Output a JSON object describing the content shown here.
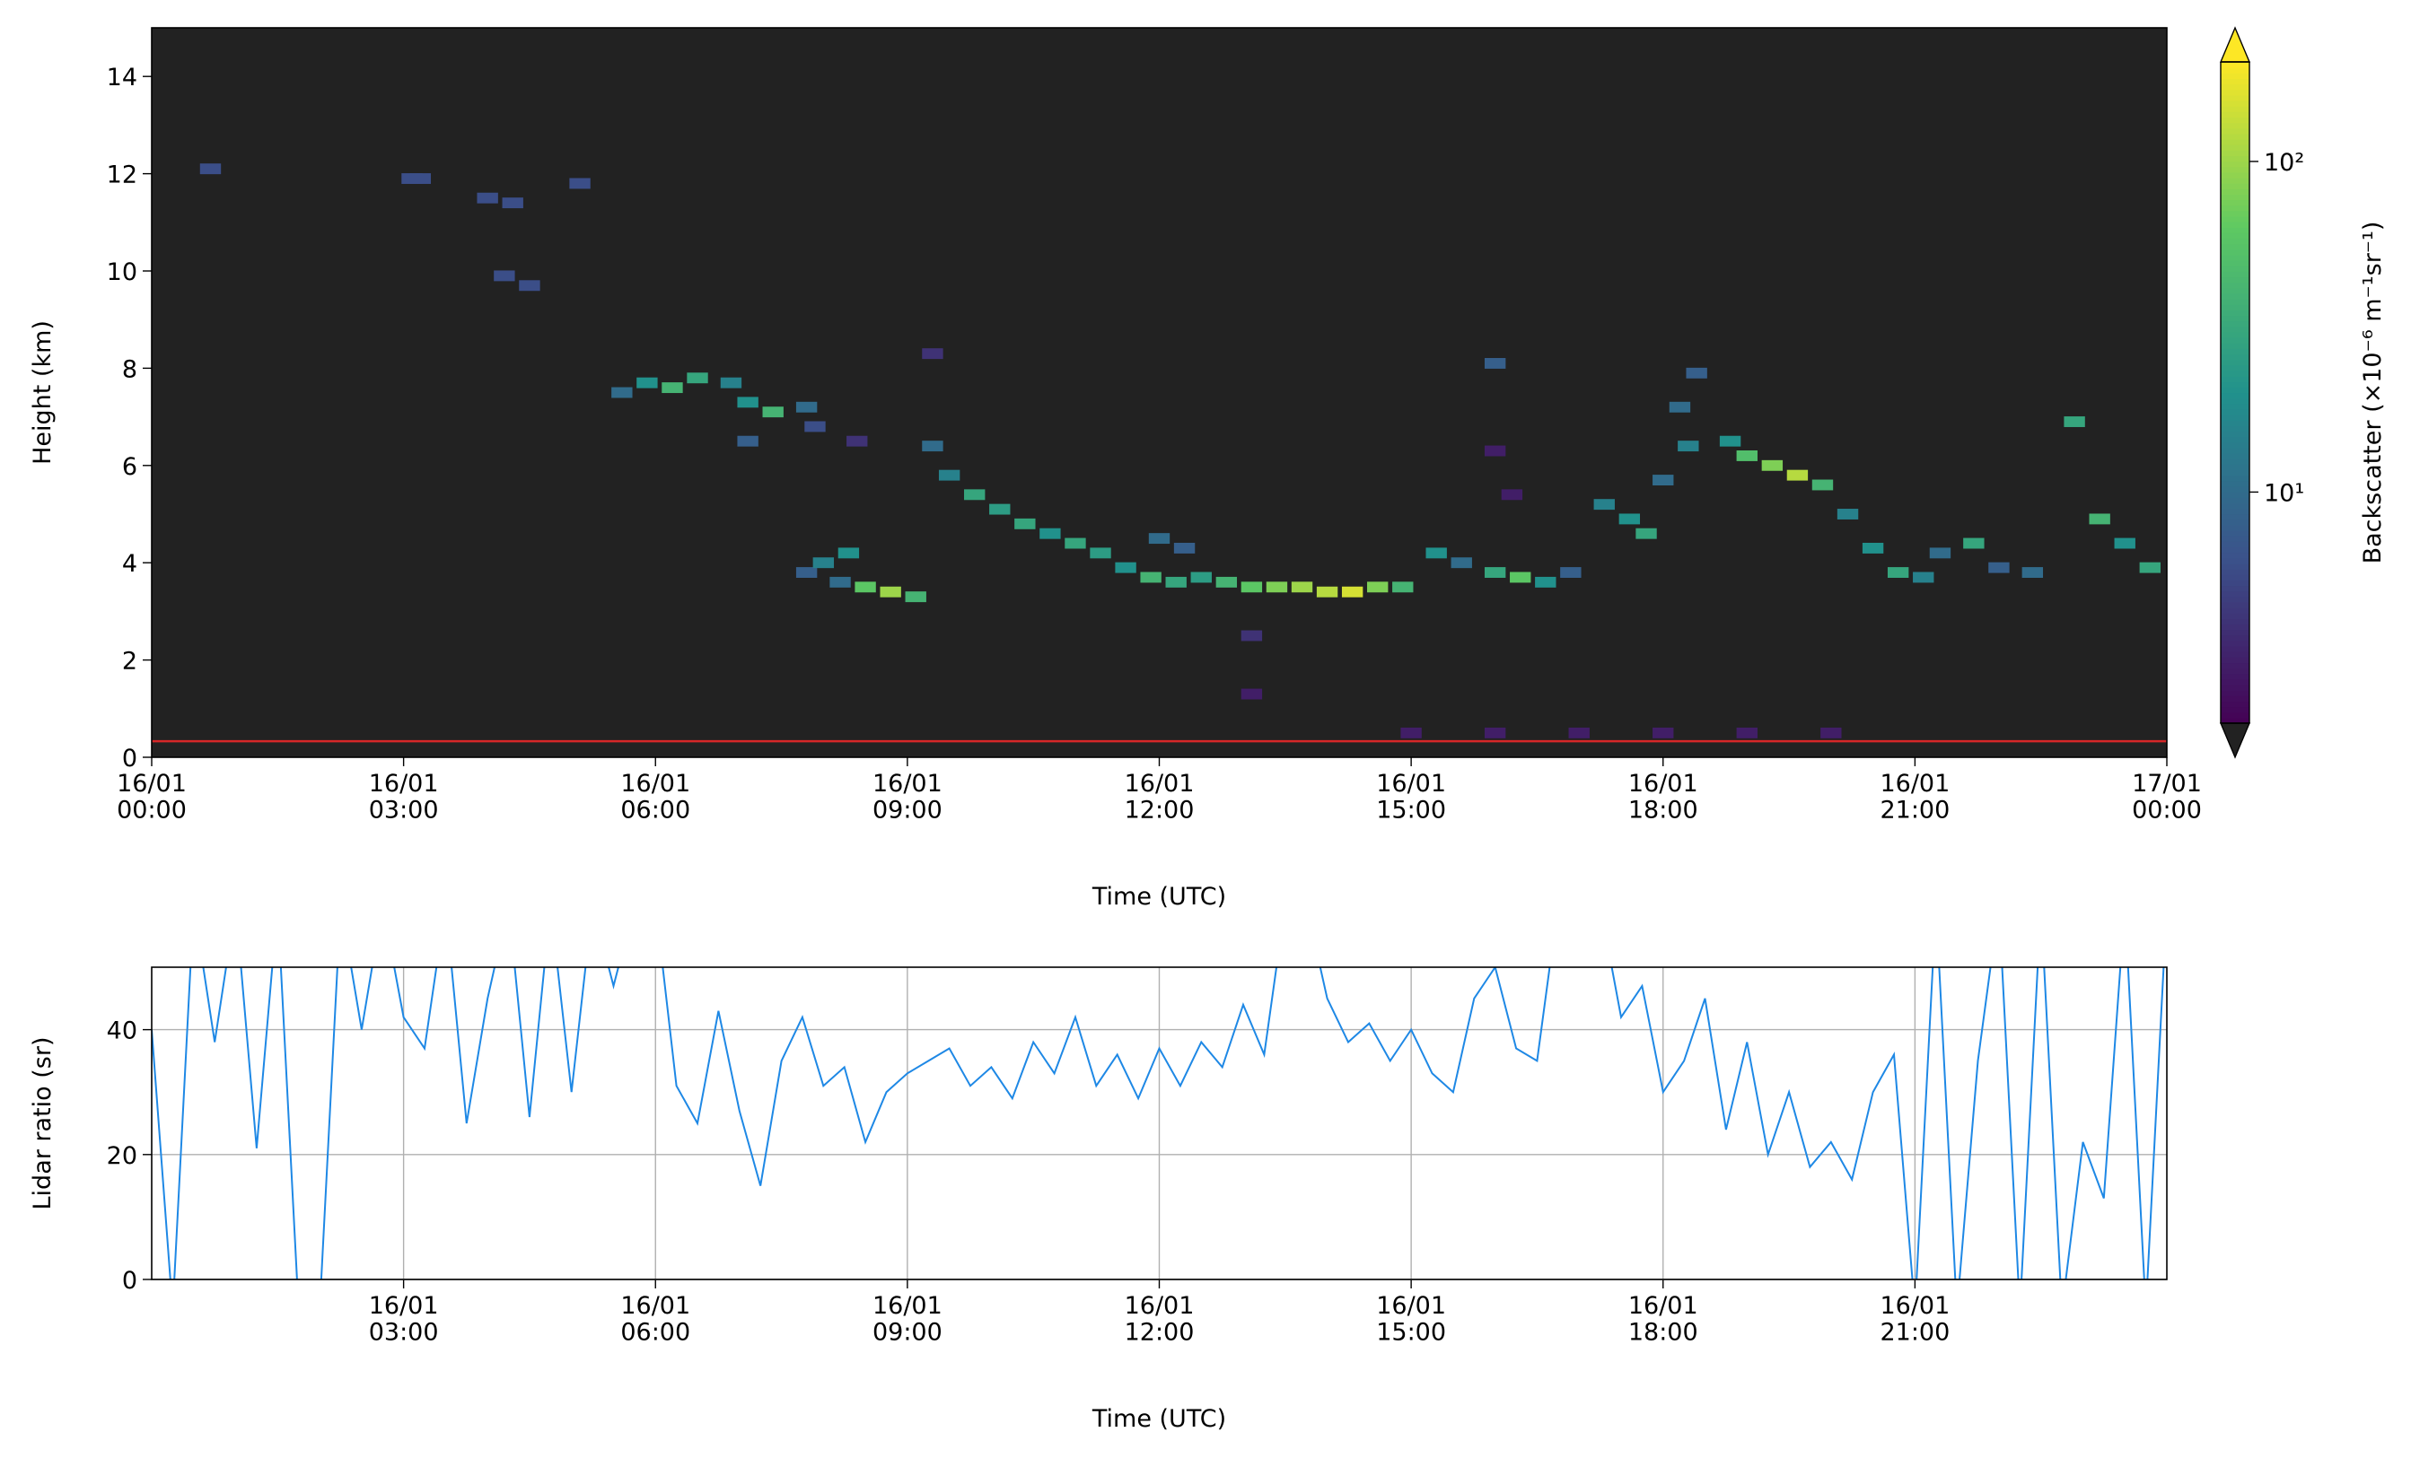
{
  "chart_data": [
    {
      "type": "heatmap",
      "ylabel": "Height (km)",
      "xlabel": "Time (UTC)",
      "background": "#222222",
      "xlim": [
        0,
        24
      ],
      "xticks": [
        {
          "value": 0,
          "label": "16/01\n00:00"
        },
        {
          "value": 3,
          "label": "16/01\n03:00"
        },
        {
          "value": 6,
          "label": "16/01\n06:00"
        },
        {
          "value": 9,
          "label": "16/01\n09:00"
        },
        {
          "value": 12,
          "label": "16/01\n12:00"
        },
        {
          "value": 15,
          "label": "16/01\n15:00"
        },
        {
          "value": 18,
          "label": "16/01\n18:00"
        },
        {
          "value": 21,
          "label": "16/01\n21:00"
        },
        {
          "value": 24,
          "label": "17/01\n00:00"
        }
      ],
      "ylim": [
        0,
        15
      ],
      "yticks": [
        0,
        2,
        4,
        6,
        8,
        10,
        12,
        14
      ],
      "reference_line": {
        "value": 0.33,
        "color": "#d62728"
      },
      "x": [
        0.7,
        3.1,
        3.2,
        4.0,
        4.3,
        4.2,
        4.5,
        5.1,
        5.6,
        5.9,
        6.2,
        6.5,
        6.9,
        7.1,
        7.4,
        7.1,
        7.8,
        7.9,
        8.4,
        7.8,
        8.0,
        8.3,
        8.5,
        8.8,
        9.1,
        8.2,
        9.3,
        9.3,
        9.5,
        9.8,
        10.1,
        10.4,
        10.7,
        11.0,
        11.3,
        11.6,
        11.9,
        12.2,
        12.5,
        12.8,
        13.1,
        13.4,
        13.7,
        14.0,
        14.3,
        14.6,
        14.9,
        12.0,
        12.3,
        13.1,
        13.1,
        15.3,
        15.6,
        16.0,
        16.3,
        16.6,
        16.9,
        16.0,
        16.2,
        16.0,
        17.3,
        17.6,
        17.8,
        18.0,
        18.2,
        18.4,
        18.3,
        18.8,
        19.0,
        19.3,
        19.6,
        19.9,
        20.2,
        20.5,
        20.8,
        21.1,
        21.3,
        21.7,
        22.0,
        22.4,
        22.9,
        23.2,
        23.5,
        23.8,
        15.0,
        16.0,
        17.0,
        18.0,
        19.0,
        20.0
      ],
      "y": [
        12.1,
        11.9,
        11.9,
        11.5,
        11.4,
        9.9,
        9.7,
        11.8,
        7.5,
        7.7,
        7.6,
        7.8,
        7.7,
        7.3,
        7.1,
        6.5,
        7.2,
        6.8,
        6.5,
        3.8,
        4.0,
        4.2,
        3.5,
        3.4,
        3.3,
        3.6,
        8.3,
        6.4,
        5.8,
        5.4,
        5.1,
        4.8,
        4.6,
        4.4,
        4.2,
        3.9,
        3.7,
        3.6,
        3.7,
        3.6,
        3.5,
        3.5,
        3.5,
        3.4,
        3.4,
        3.5,
        3.5,
        4.5,
        4.3,
        2.5,
        1.3,
        4.2,
        4.0,
        3.8,
        3.7,
        3.6,
        3.8,
        6.3,
        5.4,
        8.1,
        5.2,
        4.9,
        4.6,
        5.7,
        7.2,
        7.9,
        6.4,
        6.5,
        6.2,
        6.0,
        5.8,
        5.6,
        5.0,
        4.3,
        3.8,
        3.7,
        4.2,
        4.4,
        3.9,
        3.8,
        6.9,
        4.9,
        4.4,
        3.9,
        0.5,
        0.5,
        0.5,
        0.5,
        0.5,
        0.5
      ],
      "values": [
        6,
        6,
        6,
        6,
        6,
        6,
        6,
        6,
        10,
        20,
        40,
        30,
        15,
        20,
        40,
        8,
        10,
        6,
        4,
        8,
        15,
        20,
        60,
        100,
        40,
        10,
        4,
        10,
        15,
        30,
        25,
        30,
        20,
        30,
        25,
        20,
        40,
        30,
        25,
        40,
        60,
        80,
        100,
        120,
        150,
        80,
        40,
        10,
        8,
        4,
        3,
        20,
        10,
        30,
        60,
        20,
        8,
        3,
        3,
        8,
        15,
        20,
        30,
        10,
        10,
        8,
        15,
        20,
        50,
        80,
        120,
        40,
        15,
        20,
        30,
        15,
        10,
        30,
        8,
        10,
        30,
        40,
        20,
        30,
        3,
        3,
        3,
        3,
        3,
        3
      ],
      "colorbar": {
        "label": "Backscatter (×10⁻⁶ m⁻¹sr⁻¹)",
        "scale": "log",
        "lim": [
          2,
          200
        ],
        "ticks": [
          {
            "value": 10,
            "label": "10¹"
          },
          {
            "value": 100,
            "label": "10²"
          }
        ],
        "colormap": "viridis",
        "over_color": "#fde725",
        "under_color": "#222222"
      }
    },
    {
      "type": "line",
      "ylabel": "Lidar ratio (sr)",
      "xlabel": "Time (UTC)",
      "xlim": [
        0,
        24
      ],
      "xticks": [
        {
          "value": 3,
          "label": "16/01\n03:00"
        },
        {
          "value": 6,
          "label": "16/01\n06:00"
        },
        {
          "value": 9,
          "label": "16/01\n09:00"
        },
        {
          "value": 12,
          "label": "16/01\n12:00"
        },
        {
          "value": 15,
          "label": "16/01\n15:00"
        },
        {
          "value": 18,
          "label": "16/01\n18:00"
        },
        {
          "value": 21,
          "label": "16/01\n21:00"
        }
      ],
      "ylim": [
        0,
        50
      ],
      "yticks": [
        0,
        20,
        40
      ],
      "grid": true,
      "color": "#1e88e5",
      "x": [
        0,
        0.25,
        0.5,
        0.75,
        1,
        1.25,
        1.5,
        1.75,
        2,
        2.25,
        2.5,
        2.75,
        3,
        3.25,
        3.5,
        3.75,
        4,
        4.25,
        4.5,
        4.75,
        5,
        5.25,
        5.5,
        5.75,
        6,
        6.25,
        6.5,
        6.75,
        7,
        7.25,
        7.5,
        7.75,
        8,
        8.25,
        8.5,
        8.75,
        9,
        9.25,
        9.5,
        9.75,
        10,
        10.25,
        10.5,
        10.75,
        11,
        11.25,
        11.5,
        11.75,
        12,
        12.25,
        12.5,
        12.75,
        13,
        13.25,
        13.5,
        13.75,
        14,
        14.25,
        14.5,
        14.75,
        15,
        15.25,
        15.5,
        15.75,
        16,
        16.25,
        16.5,
        16.75,
        17,
        17.25,
        17.5,
        17.75,
        18,
        18.25,
        18.5,
        18.75,
        19,
        19.25,
        19.5,
        19.75,
        20,
        20.25,
        20.5,
        20.75,
        21,
        21.25,
        21.5,
        21.75,
        22,
        22.25,
        22.5,
        22.75,
        23,
        23.25,
        23.5,
        23.75,
        24
      ],
      "values": [
        40,
        -5,
        60,
        38,
        60,
        21,
        60,
        -5,
        -5,
        60,
        40,
        60,
        42,
        37,
        60,
        25,
        45,
        60,
        26,
        60,
        30,
        60,
        47,
        60,
        60,
        31,
        25,
        43,
        27,
        15,
        35,
        42,
        31,
        34,
        22,
        30,
        33,
        35,
        37,
        31,
        34,
        29,
        38,
        33,
        42,
        31,
        36,
        29,
        37,
        31,
        38,
        34,
        44,
        36,
        60,
        60,
        45,
        38,
        41,
        35,
        40,
        33,
        30,
        45,
        50,
        37,
        35,
        60,
        60,
        60,
        42,
        47,
        30,
        35,
        45,
        24,
        38,
        20,
        30,
        18,
        22,
        16,
        30,
        36,
        -5,
        60,
        -5,
        35,
        60,
        -5,
        60,
        -5,
        22,
        13,
        60,
        -5,
        60
      ]
    }
  ]
}
